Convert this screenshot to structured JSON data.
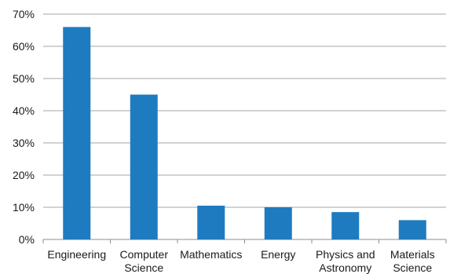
{
  "chart_data": {
    "type": "bar",
    "categories": [
      [
        "Engineering"
      ],
      [
        "Computer",
        "Science"
      ],
      [
        "Mathematics"
      ],
      [
        "Energy"
      ],
      [
        "Physics and",
        "Astronomy"
      ],
      [
        "Materials",
        "Science"
      ]
    ],
    "values": [
      66,
      45,
      10.5,
      10,
      8.5,
      6
    ],
    "y_ticks": [
      "0%",
      "10%",
      "20%",
      "30%",
      "40%",
      "50%",
      "60%",
      "70%"
    ],
    "ylim": [
      0,
      70
    ],
    "y_unit": "%",
    "title": "",
    "xlabel": "",
    "ylabel": "",
    "grid": true,
    "legend": "none",
    "bar_color": "#1f7bc0"
  }
}
